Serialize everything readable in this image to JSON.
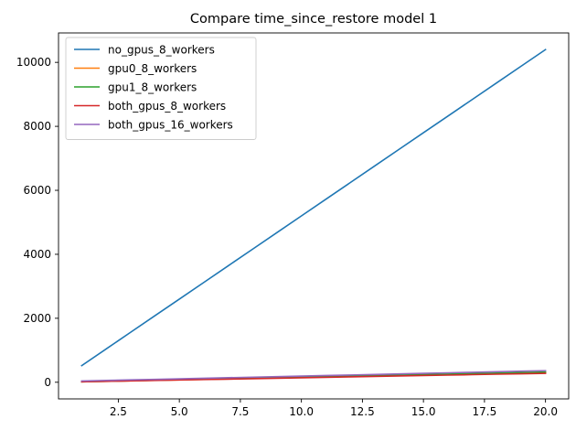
{
  "chart_data": {
    "type": "line",
    "title": "Compare time_since_restore model 1",
    "xlabel": "",
    "ylabel": "",
    "xlim": [
      0.05,
      20.95
    ],
    "ylim": [
      -520,
      10920
    ],
    "x": [
      1,
      2,
      3,
      4,
      5,
      6,
      7,
      8,
      9,
      10,
      11,
      12,
      13,
      14,
      15,
      16,
      17,
      18,
      19,
      20
    ],
    "xticks": [
      2.5,
      5.0,
      7.5,
      10.0,
      12.5,
      15.0,
      17.5,
      20.0
    ],
    "xtick_labels": [
      "2.5",
      "5.0",
      "7.5",
      "10.0",
      "12.5",
      "15.0",
      "17.5",
      "20.0"
    ],
    "yticks": [
      0,
      2000,
      4000,
      6000,
      8000,
      10000
    ],
    "ytick_labels": [
      "0",
      "2000",
      "4000",
      "6000",
      "8000",
      "10000"
    ],
    "grid": false,
    "legend_position": "top-left",
    "series": [
      {
        "name": "no_gpus_8_workers",
        "color": "#1f77b4",
        "values": [
          520,
          1040,
          1560,
          2080,
          2600,
          3120,
          3640,
          4160,
          4680,
          5200,
          5720,
          6240,
          6760,
          7280,
          7800,
          8320,
          8840,
          9360,
          9880,
          10400
        ]
      },
      {
        "name": "gpu0_8_workers",
        "color": "#ff7f0e",
        "values": [
          15,
          30,
          45,
          60,
          75,
          90,
          105,
          120,
          135,
          150,
          165,
          180,
          195,
          210,
          225,
          240,
          255,
          270,
          285,
          300
        ]
      },
      {
        "name": "gpu1_8_workers",
        "color": "#2ca02c",
        "values": [
          16,
          32,
          48,
          64,
          80,
          96,
          112,
          128,
          144,
          160,
          176,
          192,
          208,
          224,
          240,
          256,
          272,
          288,
          304,
          320
        ]
      },
      {
        "name": "both_gpus_8_workers",
        "color": "#d62728",
        "values": [
          14,
          28,
          42,
          56,
          70,
          84,
          98,
          112,
          126,
          140,
          154,
          168,
          182,
          196,
          210,
          224,
          238,
          252,
          266,
          280
        ]
      },
      {
        "name": "both_gpus_16_workers",
        "color": "#9467bd",
        "values": [
          40,
          57,
          74,
          91,
          108,
          125,
          142,
          159,
          176,
          193,
          210,
          227,
          244,
          261,
          278,
          295,
          312,
          329,
          346,
          363
        ]
      }
    ]
  }
}
